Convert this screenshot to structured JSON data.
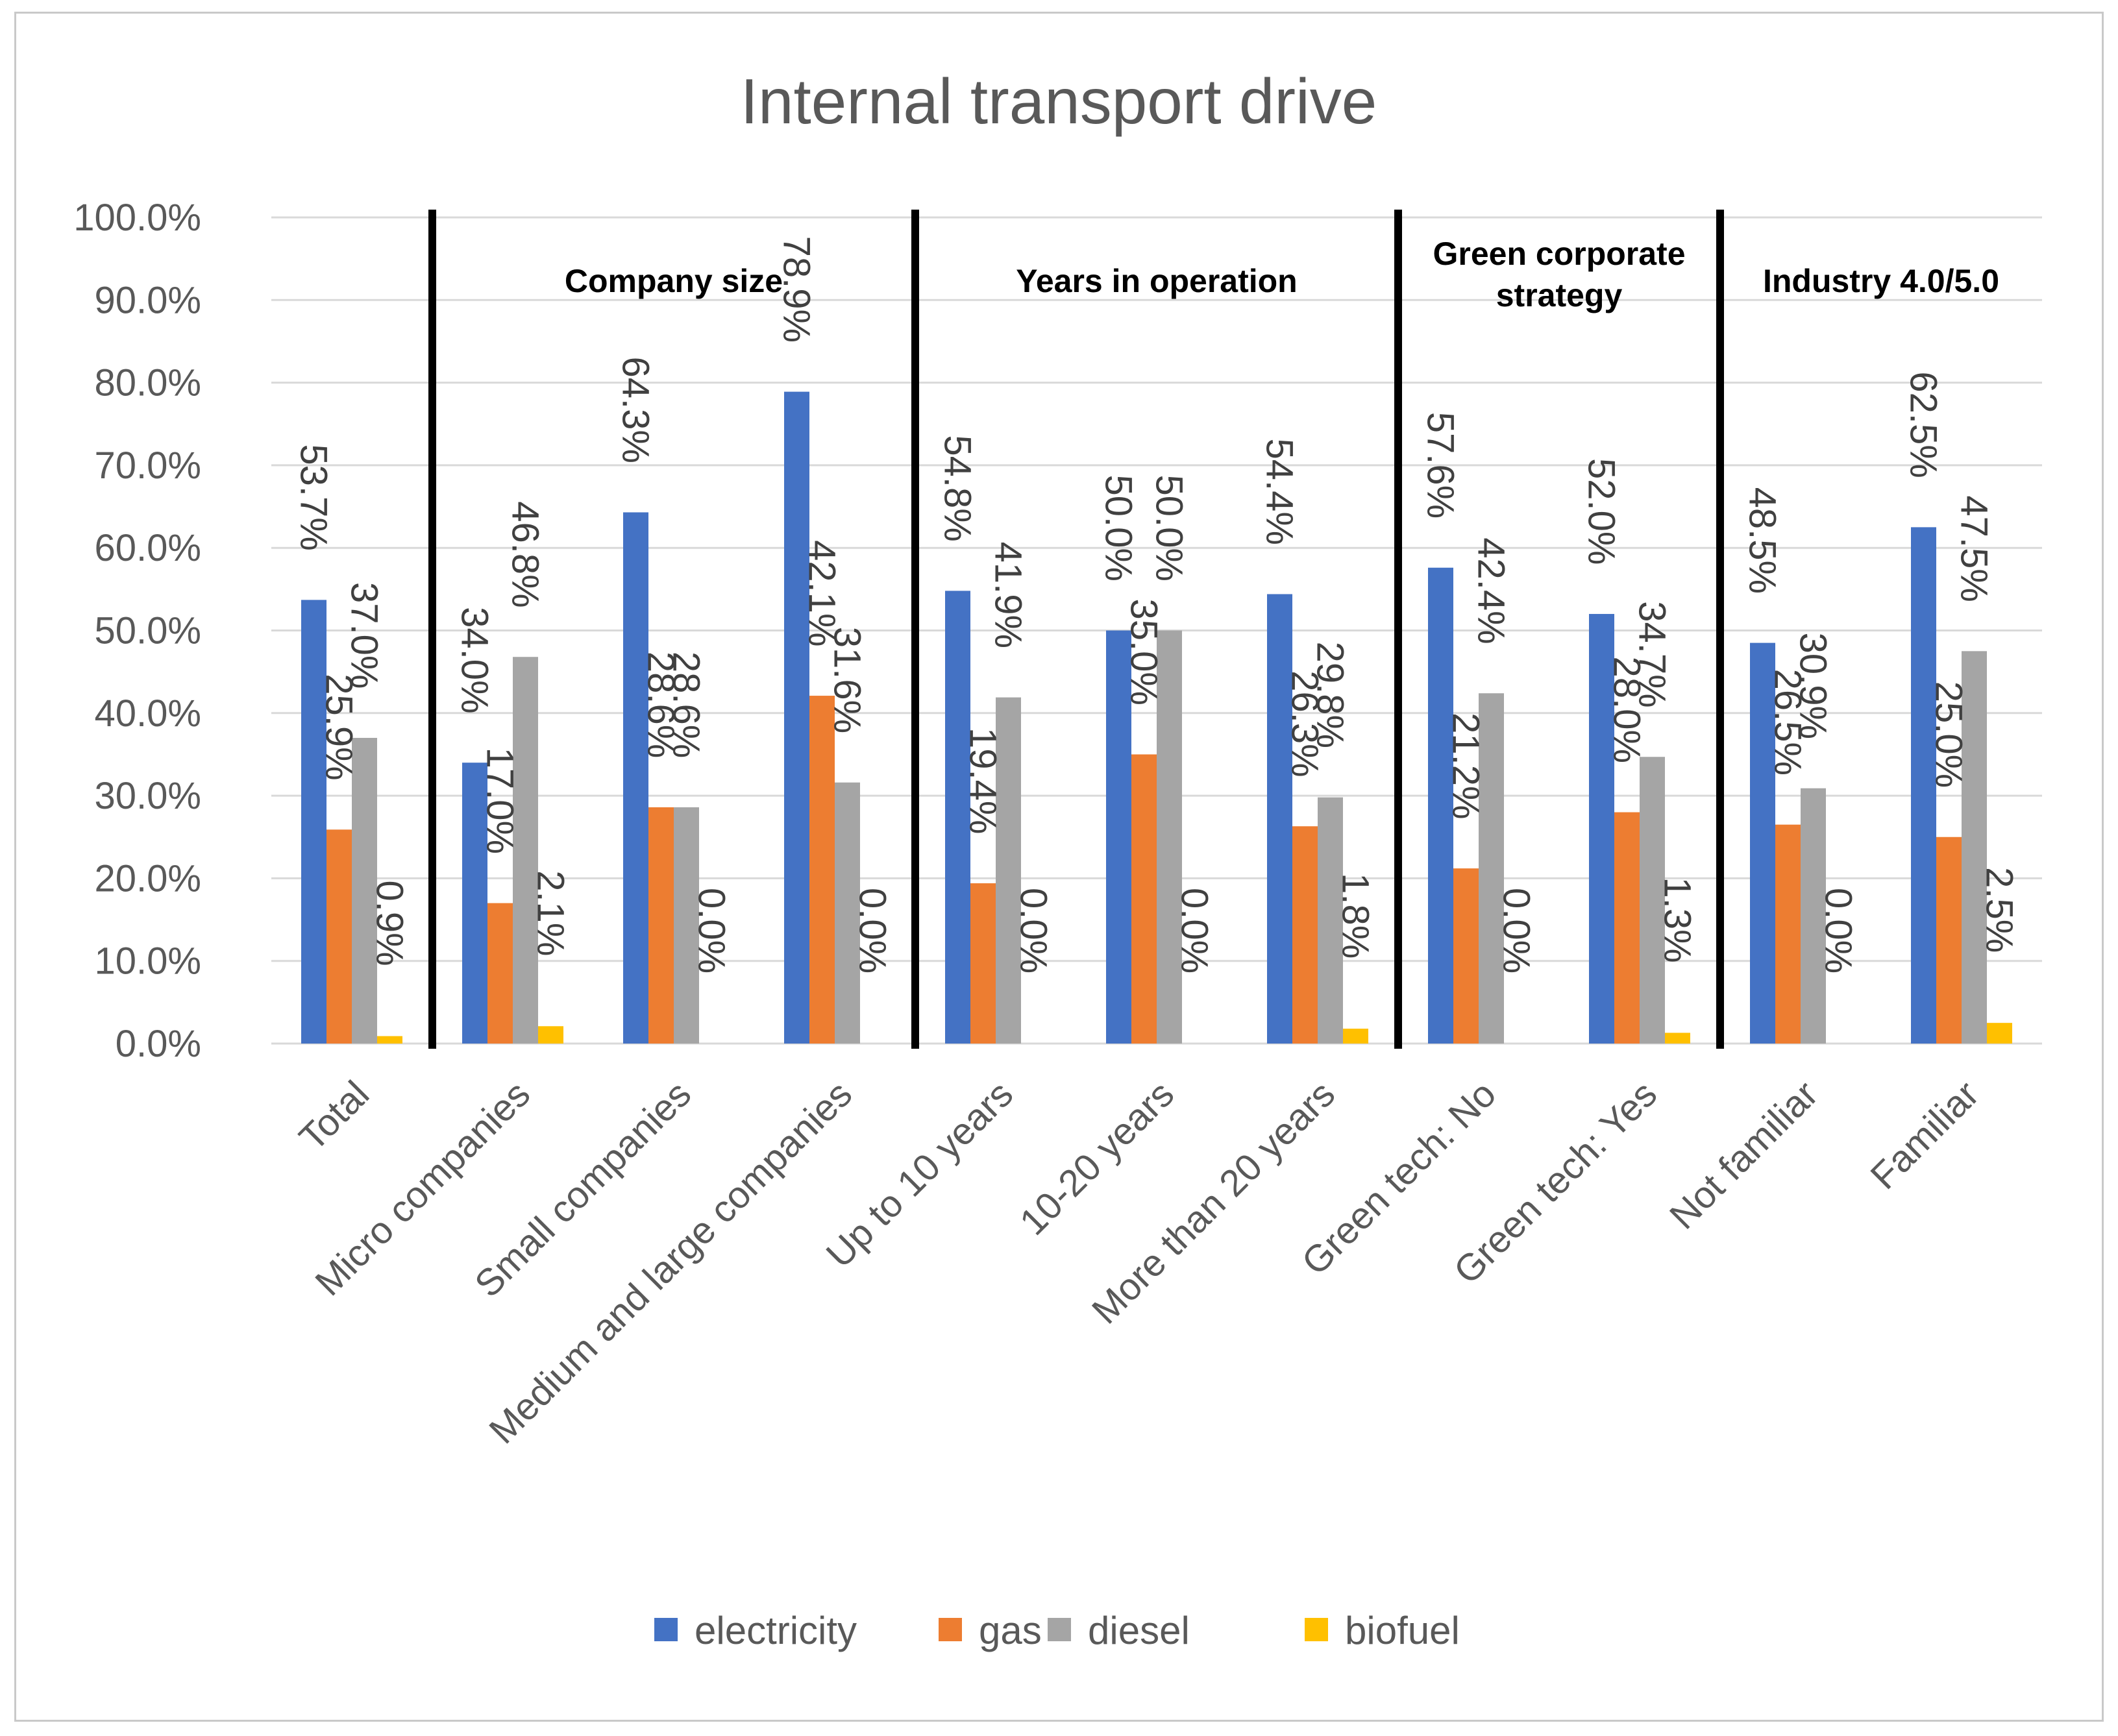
{
  "chart_data": {
    "type": "bar",
    "title": "Internal transport drive",
    "xlabel": "",
    "ylabel": "",
    "ylim": [
      0,
      100
    ],
    "yticks": [
      "0.0%",
      "10.0%",
      "20.0%",
      "30.0%",
      "40.0%",
      "50.0%",
      "60.0%",
      "70.0%",
      "80.0%",
      "90.0%",
      "100.0%"
    ],
    "grid": true,
    "legend_position": "bottom",
    "categories": [
      "Total",
      "Micro companies",
      "Small companies",
      "Medium and large companies",
      "Up to 10 years",
      "10-20 years",
      "More than 20 years",
      "Green tech: No",
      "Green tech: Yes",
      "Not familiar",
      "Familiar"
    ],
    "series": [
      {
        "name": "electricity",
        "color": "#4472C4",
        "values": [
          53.7,
          34.0,
          64.3,
          78.9,
          54.8,
          50.0,
          54.4,
          57.6,
          52.0,
          48.5,
          62.5
        ],
        "labels": [
          "53.7%",
          "34.0%",
          "64.3%",
          "78.9%",
          "54.8%",
          "50.0%",
          "54.4%",
          "57.6%",
          "52.0%",
          "48.5%",
          "62.5%"
        ]
      },
      {
        "name": "gas",
        "color": "#ED7D31",
        "values": [
          25.9,
          17.0,
          28.6,
          42.1,
          19.4,
          35.0,
          26.3,
          21.2,
          28.0,
          26.5,
          25.0
        ],
        "labels": [
          "25.9%",
          "17.0%",
          "28.6%",
          "42.1%",
          "19.4%",
          "35.0%",
          "26.3%",
          "21.2%",
          "28.0%",
          "26.5%",
          "25.0%"
        ]
      },
      {
        "name": "diesel",
        "color": "#A5A5A5",
        "values": [
          37.0,
          46.8,
          28.6,
          31.6,
          41.9,
          50.0,
          29.8,
          42.4,
          34.7,
          30.9,
          47.5
        ],
        "labels": [
          "37.0%",
          "46.8%",
          "28.6%",
          "31.6%",
          "41.9%",
          "50.0%",
          "29.8%",
          "42.4%",
          "34.7%",
          "30.9%",
          "47.5%"
        ]
      },
      {
        "name": "biofuel",
        "color": "#FFC000",
        "values": [
          0.9,
          2.1,
          0.0,
          0.0,
          0.0,
          0.0,
          1.8,
          0.0,
          1.3,
          0.0,
          2.5
        ],
        "labels": [
          "0.9%",
          "2.1%",
          "0.0%",
          "0.0%",
          "0.0%",
          "0.0%",
          "1.8%",
          "0.0%",
          "1.3%",
          "0.0%",
          "2.5%"
        ]
      }
    ],
    "groups": [
      {
        "lines": [
          "Company size"
        ],
        "first": 1,
        "last": 3
      },
      {
        "lines": [
          "Years in operation"
        ],
        "first": 4,
        "last": 6
      },
      {
        "lines": [
          "Green corporate",
          "strategy"
        ],
        "first": 7,
        "last": 8
      },
      {
        "lines": [
          "Industry 4.0/5.0"
        ],
        "first": 9,
        "last": 10
      }
    ],
    "separators_after": [
      0,
      3,
      6,
      8
    ],
    "separator_color": "#000000",
    "gridline_color": "#D9D9D9"
  }
}
